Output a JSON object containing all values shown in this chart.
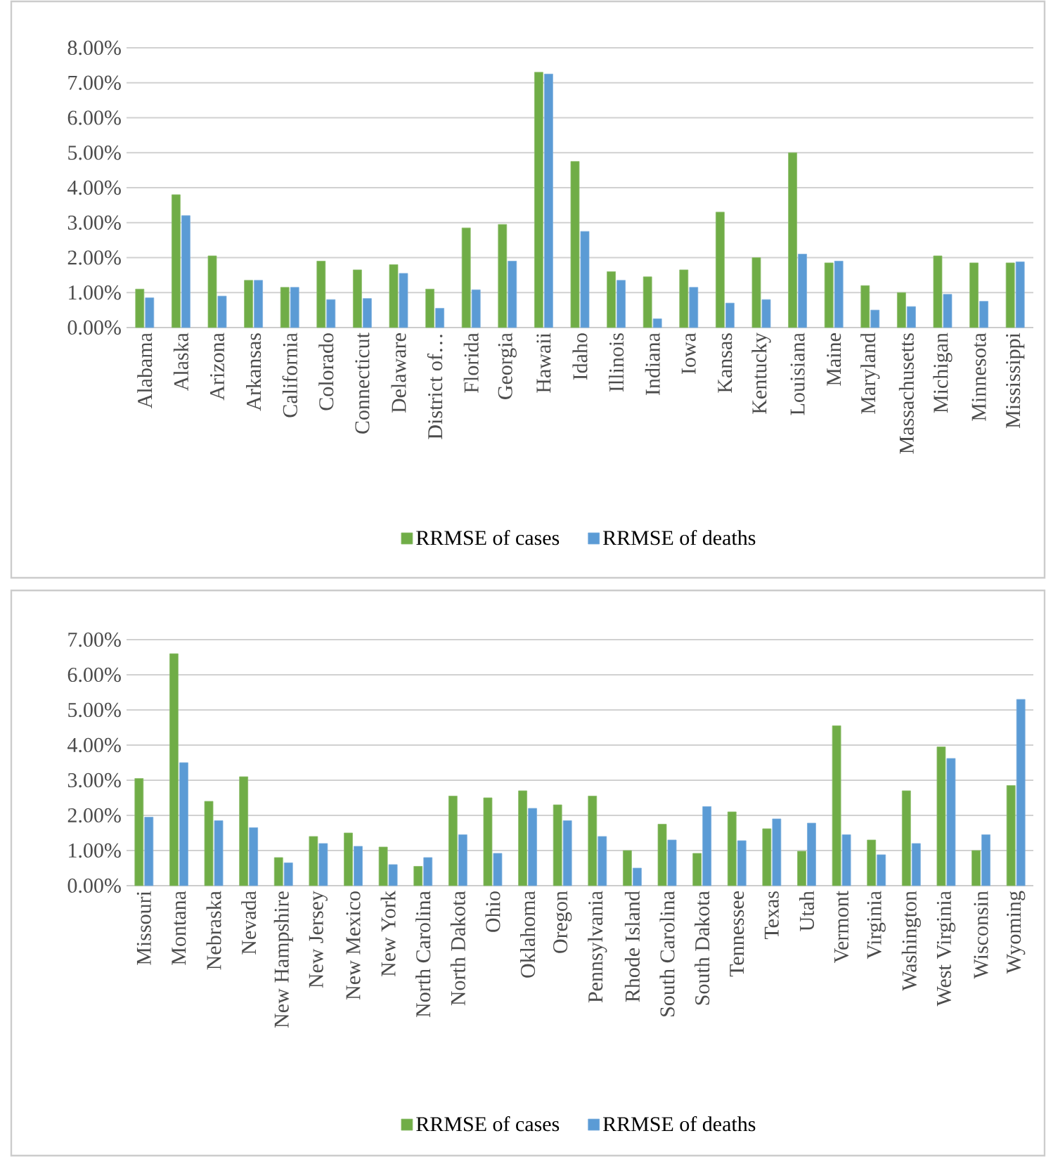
{
  "chart_data": [
    {
      "type": "bar",
      "categories": [
        "Alabama",
        "Alaska",
        "Arizona",
        "Arkansas",
        "California",
        "Colorado",
        "Connecticut",
        "Delaware",
        "District of…",
        "Florida",
        "Georgia",
        "Hawaii",
        "Idaho",
        "Illinois",
        "Indiana",
        "Iowa",
        "Kansas",
        "Kentucky",
        "Louisiana",
        "Maine",
        "Maryland",
        "Massachusetts",
        "Michigan",
        "Minnesota",
        "Mississippi"
      ],
      "series": [
        {
          "name": "RRMSE of cases",
          "color": "#70ad47",
          "values": [
            1.1,
            3.8,
            2.05,
            1.35,
            1.15,
            1.9,
            1.65,
            1.8,
            1.1,
            2.85,
            2.95,
            7.3,
            4.75,
            1.6,
            1.45,
            1.65,
            3.3,
            2.0,
            5.0,
            1.85,
            1.2,
            1.0,
            2.05,
            1.85,
            1.85
          ]
        },
        {
          "name": "RRMSE of deaths",
          "color": "#5b9bd5",
          "values": [
            0.85,
            3.2,
            0.9,
            1.35,
            1.15,
            0.8,
            0.83,
            1.55,
            0.55,
            1.08,
            1.9,
            7.25,
            2.75,
            1.35,
            0.25,
            1.15,
            0.7,
            0.8,
            2.1,
            1.9,
            0.5,
            0.6,
            0.95,
            0.75,
            1.88
          ]
        }
      ],
      "ylim": [
        0,
        8
      ],
      "yticks": [
        {
          "value": 0,
          "label": "0.00%"
        },
        {
          "value": 1,
          "label": "1.00%"
        },
        {
          "value": 2,
          "label": "2.00%"
        },
        {
          "value": 3,
          "label": "3.00%"
        },
        {
          "value": 4,
          "label": "4.00%"
        },
        {
          "value": 5,
          "label": "5.00%"
        },
        {
          "value": 6,
          "label": "6.00%"
        },
        {
          "value": 7,
          "label": "7.00%"
        },
        {
          "value": 8,
          "label": "8.00%"
        }
      ],
      "grid": "y",
      "legend": "bottom"
    },
    {
      "type": "bar",
      "categories": [
        "Missouri",
        "Montana",
        "Nebraska",
        "Nevada",
        "New Hampshire",
        "New Jersey",
        "New Mexico",
        "New York",
        "North Carolina",
        "North Dakota",
        "Ohio",
        "Oklahoma",
        "Oregon",
        "Pennsylvania",
        "Rhode Island",
        "South Carolina",
        "South Dakota",
        "Tennessee",
        "Texas",
        "Utah",
        "Vermont",
        "Virginia",
        "Washington",
        "West Virginia",
        "Wisconsin",
        "Wyoming"
      ],
      "series": [
        {
          "name": "RRMSE of cases",
          "color": "#70ad47",
          "values": [
            3.05,
            6.6,
            2.4,
            3.1,
            0.8,
            1.4,
            1.5,
            1.1,
            0.55,
            2.55,
            2.5,
            2.7,
            2.3,
            2.55,
            1.0,
            1.75,
            0.92,
            2.1,
            1.62,
            0.98,
            4.55,
            1.3,
            2.7,
            3.95,
            1.0,
            2.85
          ]
        },
        {
          "name": "RRMSE of deaths",
          "color": "#5b9bd5",
          "values": [
            1.95,
            3.5,
            1.85,
            1.65,
            0.65,
            1.2,
            1.12,
            0.6,
            0.8,
            1.45,
            0.92,
            2.2,
            1.85,
            1.4,
            0.5,
            1.3,
            2.25,
            1.28,
            1.9,
            1.78,
            1.45,
            0.88,
            1.2,
            3.62,
            1.45,
            5.3
          ]
        }
      ],
      "ylim": [
        0,
        7
      ],
      "yticks": [
        {
          "value": 0,
          "label": "0.00%"
        },
        {
          "value": 1,
          "label": "1.00%"
        },
        {
          "value": 2,
          "label": "2.00%"
        },
        {
          "value": 3,
          "label": "3.00%"
        },
        {
          "value": 4,
          "label": "4.00%"
        },
        {
          "value": 5,
          "label": "5.00%"
        },
        {
          "value": 6,
          "label": "6.00%"
        },
        {
          "value": 7,
          "label": "7.00%"
        }
      ],
      "grid": "y",
      "legend": "bottom"
    }
  ]
}
